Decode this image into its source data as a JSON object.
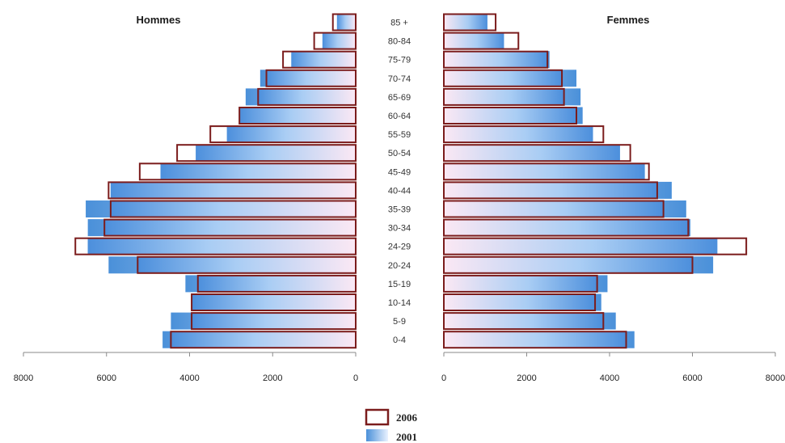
{
  "chart_data": {
    "type": "bar",
    "orientation": "horizontal-population-pyramid",
    "categories": [
      "85 +",
      "80-84",
      "75-79",
      "70-74",
      "65-69",
      "60-64",
      "55-59",
      "50-54",
      "45-49",
      "40-44",
      "35-39",
      "30-34",
      "24-29",
      "20-24",
      "15-19",
      "10-14",
      "5-9",
      "0-4"
    ],
    "panels": [
      {
        "title": "Hommes",
        "direction": "left",
        "xlim": [
          0,
          8000
        ],
        "ticks": [
          "8000",
          "6000",
          "4000",
          "2000",
          "0"
        ],
        "tick_values": [
          8000,
          6000,
          4000,
          2000,
          0
        ],
        "series": [
          {
            "name": "2001",
            "values": [
              450,
              800,
              1550,
              2300,
              2650,
              2800,
              3100,
              3850,
              4700,
              5900,
              6500,
              6450,
              6450,
              5950,
              4100,
              3950,
              4450,
              4650
            ]
          },
          {
            "name": "2006",
            "values": [
              550,
              1000,
              1750,
              2150,
              2350,
              2800,
              3500,
              4300,
              5200,
              5950,
              5900,
              6050,
              6750,
              5250,
              3800,
              3950,
              3950,
              4450
            ]
          }
        ]
      },
      {
        "title": "Femmes",
        "direction": "right",
        "xlim": [
          0,
          8000
        ],
        "ticks": [
          "0",
          "2000",
          "4000",
          "6000",
          "8000"
        ],
        "tick_values": [
          0,
          2000,
          4000,
          6000,
          8000
        ],
        "series": [
          {
            "name": "2001",
            "values": [
              1050,
              1450,
              2550,
              3200,
              3300,
              3350,
              3600,
              4250,
              4850,
              5500,
              5850,
              5950,
              6600,
              6500,
              3950,
              3800,
              4150,
              4600
            ]
          },
          {
            "name": "2006",
            "values": [
              1250,
              1800,
              2500,
              2850,
              2900,
              3200,
              3850,
              4500,
              4950,
              5150,
              5300,
              5900,
              7300,
              6000,
              3700,
              3650,
              3850,
              4400
            ]
          }
        ]
      }
    ],
    "legend": {
      "placement": "bottom-center",
      "items": [
        {
          "label": "2006",
          "style": "outline",
          "color": "#7b1c1c"
        },
        {
          "label": "2001",
          "style": "gradient",
          "color": "#4a90d9"
        }
      ]
    },
    "colors": {
      "outline_2006": "#7b1c1c",
      "fill_2001_dark": "#4a90d9",
      "fill_2001_light": "#eaf2ff",
      "fill_2006_center": "#fbe8f4",
      "axis": "#8a8a8a"
    }
  }
}
